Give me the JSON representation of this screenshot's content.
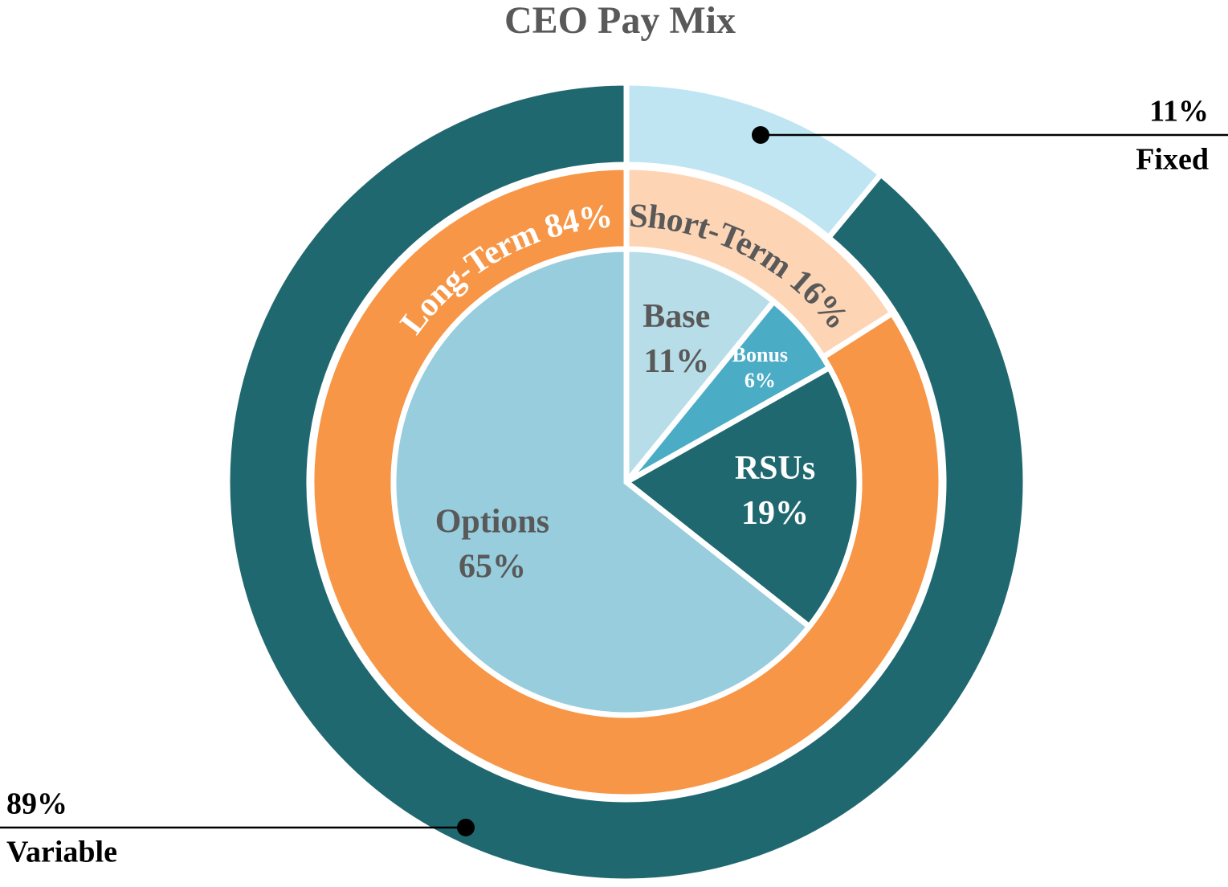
{
  "chart_data": {
    "type": "pie",
    "title": "CEO Pay Mix",
    "rings": [
      {
        "labels": [
          "Fixed",
          "Variable"
        ],
        "values": [
          11,
          89
        ],
        "value_labels": [
          "11%",
          "89%"
        ],
        "colors": [
          "#bfe5f3",
          "#206870"
        ]
      },
      {
        "labels": [
          "Short-Term",
          "Long-Term"
        ],
        "values": [
          16,
          84
        ],
        "value_labels": [
          "16%",
          "84%"
        ],
        "colors": [
          "#fdd5b5",
          "#f79646"
        ]
      },
      {
        "labels": [
          "Base",
          "Bonus",
          "RSUs",
          "Options"
        ],
        "values": [
          11,
          6,
          19,
          65
        ],
        "value_labels": [
          "11%",
          "6%",
          "19%",
          "65%"
        ],
        "colors": [
          "#b7dde8",
          "#4bacc6",
          "#206870",
          "#97cddd"
        ]
      }
    ]
  }
}
